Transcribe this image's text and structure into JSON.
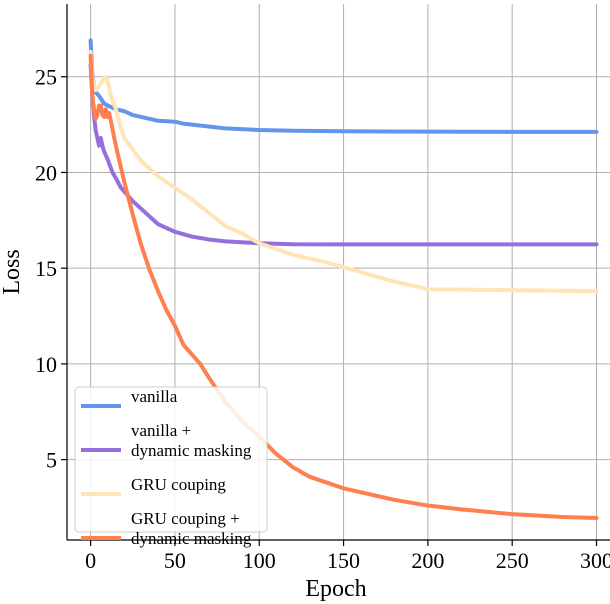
{
  "chart_data": {
    "type": "line",
    "title": "",
    "xlabel": "Epoch",
    "ylabel": "Loss",
    "xlim": [
      -14,
      308
    ],
    "ylim": [
      0.8,
      28.8
    ],
    "xticks": [
      0,
      50,
      100,
      150,
      200,
      250,
      300
    ],
    "yticks": [
      5,
      10,
      15,
      20,
      25
    ],
    "grid": true,
    "legend_position": "lower-left",
    "series": [
      {
        "name": "vanilla",
        "color": "#6495ED",
        "x": [
          0,
          1,
          2,
          3,
          5,
          8,
          10,
          15,
          20,
          25,
          30,
          40,
          50,
          55,
          60,
          70,
          80,
          100,
          120,
          150,
          200,
          250,
          300
        ],
        "y": [
          26.9,
          25.2,
          24.5,
          24.2,
          24.0,
          23.6,
          23.5,
          23.3,
          23.2,
          23.0,
          22.9,
          22.7,
          22.65,
          22.55,
          22.5,
          22.4,
          22.3,
          22.22,
          22.18,
          22.15,
          22.13,
          22.12,
          22.12
        ]
      },
      {
        "name": "vanilla +\ndynamic masking",
        "color": "#9370DB",
        "x": [
          0,
          1,
          2,
          3,
          4,
          5,
          6,
          7,
          8,
          10,
          13,
          15,
          18,
          20,
          25,
          30,
          35,
          40,
          50,
          60,
          70,
          80,
          100,
          120,
          150,
          200,
          250,
          300
        ],
        "y": [
          25.6,
          24.0,
          23.0,
          22.2,
          21.8,
          21.4,
          21.8,
          21.4,
          21.1,
          20.7,
          20.0,
          19.7,
          19.2,
          19.0,
          18.5,
          18.1,
          17.7,
          17.3,
          16.9,
          16.65,
          16.5,
          16.4,
          16.3,
          16.25,
          16.24,
          16.24,
          16.24,
          16.24
        ]
      },
      {
        "name": "GRU couping",
        "color": "#FFE4B5",
        "x": [
          0,
          1,
          2,
          3,
          5,
          7,
          9,
          10,
          12,
          15,
          18,
          20,
          25,
          30,
          40,
          50,
          60,
          70,
          80,
          90,
          100,
          120,
          140,
          160,
          180,
          200,
          250,
          300
        ],
        "y": [
          26.3,
          25.0,
          24.5,
          24.3,
          24.5,
          24.8,
          25.0,
          24.8,
          24.0,
          23.3,
          22.3,
          21.8,
          21.2,
          20.6,
          19.8,
          19.2,
          18.6,
          17.9,
          17.2,
          16.8,
          16.3,
          15.7,
          15.3,
          14.8,
          14.3,
          13.9,
          13.85,
          13.8
        ]
      },
      {
        "name": "GRU couping +\ndynamic masking",
        "color": "#FF7F50",
        "x": [
          0,
          1,
          2,
          3,
          4,
          5,
          6,
          7,
          8,
          9,
          10,
          11,
          12,
          14,
          16,
          20,
          25,
          30,
          35,
          40,
          45,
          50,
          55,
          60,
          65,
          70,
          80,
          90,
          100,
          110,
          120,
          130,
          140,
          150,
          160,
          180,
          200,
          220,
          250,
          280,
          300
        ],
        "y": [
          26.1,
          24.0,
          23.3,
          22.8,
          23.0,
          23.5,
          23.5,
          23.0,
          22.9,
          23.3,
          22.9,
          23.1,
          22.7,
          21.8,
          21.0,
          19.5,
          17.8,
          16.2,
          14.9,
          13.8,
          12.8,
          12.0,
          11.0,
          10.5,
          10.0,
          9.3,
          8.0,
          7.0,
          6.2,
          5.3,
          4.6,
          4.1,
          3.8,
          3.5,
          3.3,
          2.9,
          2.6,
          2.4,
          2.15,
          2.0,
          1.95
        ]
      }
    ]
  }
}
